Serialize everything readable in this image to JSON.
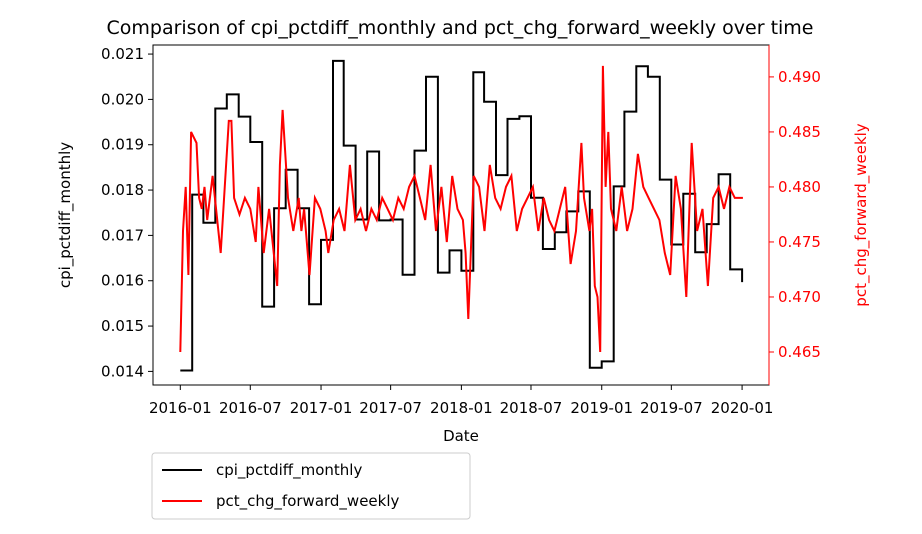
{
  "chart_data": {
    "type": "line",
    "title": "Comparison of cpi_pctdiff_monthly and pct_chg_forward_weekly over time",
    "xlabel": "Date",
    "ylabel_left": "cpi_pctdiff_monthly",
    "ylabel_right": "pct_chg_forward_weekly",
    "x_ticks": [
      "2016-01",
      "2016-07",
      "2017-01",
      "2017-07",
      "2018-01",
      "2018-07",
      "2019-01",
      "2019-07",
      "2020-01"
    ],
    "y_left_ticks": [
      "0.014",
      "0.015",
      "0.016",
      "0.017",
      "0.018",
      "0.019",
      "0.020",
      "0.021"
    ],
    "y_right_ticks": [
      "0.465",
      "0.470",
      "0.475",
      "0.480",
      "0.485",
      "0.490"
    ],
    "ylim_left": [
      0.0137,
      0.0212
    ],
    "ylim_right": [
      0.462,
      0.4929
    ],
    "xlim": [
      "2015-10-22",
      "2020-03-11"
    ],
    "grid": false,
    "legend_position": "below-left",
    "colors": {
      "cpi": "#000000",
      "pct": "#ff0000"
    },
    "series": [
      {
        "name": "cpi_pctdiff_monthly",
        "axis": "left",
        "color": "#000000",
        "x": [
          "2016-01-01",
          "2016-02-01",
          "2016-03-01",
          "2016-04-01",
          "2016-05-01",
          "2016-06-01",
          "2016-07-01",
          "2016-08-01",
          "2016-09-01",
          "2016-10-01",
          "2016-11-01",
          "2016-12-01",
          "2017-01-01",
          "2017-02-01",
          "2017-03-01",
          "2017-04-01",
          "2017-05-01",
          "2017-06-01",
          "2017-07-01",
          "2017-08-01",
          "2017-09-01",
          "2017-10-01",
          "2017-11-01",
          "2017-12-01",
          "2018-01-01",
          "2018-02-01",
          "2018-03-01",
          "2018-04-01",
          "2018-05-01",
          "2018-06-01",
          "2018-07-01",
          "2018-08-01",
          "2018-09-01",
          "2018-10-01",
          "2018-11-01",
          "2018-12-01",
          "2019-01-01",
          "2019-02-01",
          "2019-03-01",
          "2019-04-01",
          "2019-05-01",
          "2019-06-01",
          "2019-07-01",
          "2019-08-01",
          "2019-09-01",
          "2019-10-01",
          "2019-11-01",
          "2019-12-01",
          "2020-01-01"
        ],
        "values": [
          0.01402,
          0.0179,
          0.01728,
          0.0198,
          0.02011,
          0.01962,
          0.01906,
          0.01543,
          0.0176,
          0.01845,
          0.0176,
          0.01548,
          0.0169,
          0.02085,
          0.01898,
          0.01735,
          0.01885,
          0.01733,
          0.01735,
          0.01613,
          0.01887,
          0.0205,
          0.01618,
          0.01667,
          0.01622,
          0.0206,
          0.01995,
          0.01833,
          0.01957,
          0.01963,
          0.01783,
          0.0167,
          0.01707,
          0.01753,
          0.01797,
          0.01408,
          0.01422,
          0.01808,
          0.01973,
          0.02073,
          0.0205,
          0.01823,
          0.0168,
          0.01792,
          0.01663,
          0.01725,
          0.01835,
          0.01625,
          0.01597
        ]
      },
      {
        "name": "pct_chg_forward_weekly",
        "axis": "right",
        "color": "#ff0000",
        "x": [
          "2016-01-01",
          "2016-01-08",
          "2016-01-15",
          "2016-01-22",
          "2016-01-29",
          "2016-02-05",
          "2016-02-12",
          "2016-02-19",
          "2016-02-26",
          "2016-03-04",
          "2016-03-11",
          "2016-03-25",
          "2016-04-15",
          "2016-05-06",
          "2016-05-13",
          "2016-05-20",
          "2016-06-03",
          "2016-06-17",
          "2016-07-01",
          "2016-07-15",
          "2016-07-22",
          "2016-08-05",
          "2016-08-19",
          "2016-09-09",
          "2016-09-16",
          "2016-09-23",
          "2016-10-07",
          "2016-10-21",
          "2016-11-04",
          "2016-11-11",
          "2016-11-18",
          "2016-12-02",
          "2016-12-16",
          "2016-12-30",
          "2017-01-13",
          "2017-01-20",
          "2017-02-03",
          "2017-02-17",
          "2017-03-03",
          "2017-03-17",
          "2017-03-31",
          "2017-04-14",
          "2017-04-28",
          "2017-05-12",
          "2017-05-26",
          "2017-06-09",
          "2017-06-23",
          "2017-07-07",
          "2017-07-21",
          "2017-08-04",
          "2017-08-18",
          "2017-09-01",
          "2017-09-15",
          "2017-09-29",
          "2017-10-13",
          "2017-10-27",
          "2017-11-10",
          "2017-11-24",
          "2017-12-08",
          "2017-12-22",
          "2018-01-05",
          "2018-01-12",
          "2018-01-19",
          "2018-02-02",
          "2018-02-16",
          "2018-03-02",
          "2018-03-16",
          "2018-03-30",
          "2018-04-13",
          "2018-04-27",
          "2018-05-11",
          "2018-05-25",
          "2018-06-08",
          "2018-06-22",
          "2018-07-06",
          "2018-07-20",
          "2018-08-03",
          "2018-08-17",
          "2018-08-31",
          "2018-09-14",
          "2018-09-28",
          "2018-10-12",
          "2018-10-26",
          "2018-11-09",
          "2018-11-16",
          "2018-11-30",
          "2018-12-07",
          "2018-12-14",
          "2018-12-21",
          "2018-12-28",
          "2019-01-04",
          "2019-01-11",
          "2019-01-18",
          "2019-01-25",
          "2019-02-08",
          "2019-02-22",
          "2019-03-08",
          "2019-03-22",
          "2019-04-05",
          "2019-04-19",
          "2019-05-03",
          "2019-05-17",
          "2019-05-31",
          "2019-06-14",
          "2019-06-28",
          "2019-07-12",
          "2019-07-26",
          "2019-08-09",
          "2019-08-23",
          "2019-09-06",
          "2019-09-20",
          "2019-10-04",
          "2019-10-18",
          "2019-11-01",
          "2019-11-15",
          "2019-11-29",
          "2019-12-13",
          "2019-12-27",
          "2020-01-03"
        ],
        "values": [
          0.465,
          0.476,
          0.48,
          0.472,
          0.485,
          0.4845,
          0.484,
          0.479,
          0.478,
          0.48,
          0.477,
          0.481,
          0.474,
          0.486,
          0.486,
          0.479,
          0.4775,
          0.479,
          0.478,
          0.475,
          0.48,
          0.474,
          0.478,
          0.471,
          0.482,
          0.487,
          0.479,
          0.476,
          0.479,
          0.476,
          0.478,
          0.472,
          0.479,
          0.478,
          0.476,
          0.474,
          0.477,
          0.478,
          0.476,
          0.482,
          0.477,
          0.478,
          0.476,
          0.478,
          0.477,
          0.479,
          0.478,
          0.477,
          0.479,
          0.478,
          0.48,
          0.481,
          0.479,
          0.477,
          0.482,
          0.476,
          0.48,
          0.475,
          0.481,
          0.478,
          0.477,
          0.474,
          0.468,
          0.481,
          0.48,
          0.476,
          0.482,
          0.479,
          0.478,
          0.48,
          0.481,
          0.476,
          0.478,
          0.479,
          0.48,
          0.476,
          0.479,
          0.477,
          0.476,
          0.478,
          0.48,
          0.473,
          0.476,
          0.484,
          0.479,
          0.476,
          0.478,
          0.471,
          0.47,
          0.465,
          0.491,
          0.48,
          0.485,
          0.478,
          0.476,
          0.48,
          0.476,
          0.478,
          0.483,
          0.48,
          0.479,
          0.478,
          0.477,
          0.474,
          0.472,
          0.481,
          0.478,
          0.47,
          0.484,
          0.476,
          0.478,
          0.471,
          0.479,
          0.48,
          0.478,
          0.48,
          0.479,
          0.479,
          0.479
        ]
      }
    ]
  }
}
